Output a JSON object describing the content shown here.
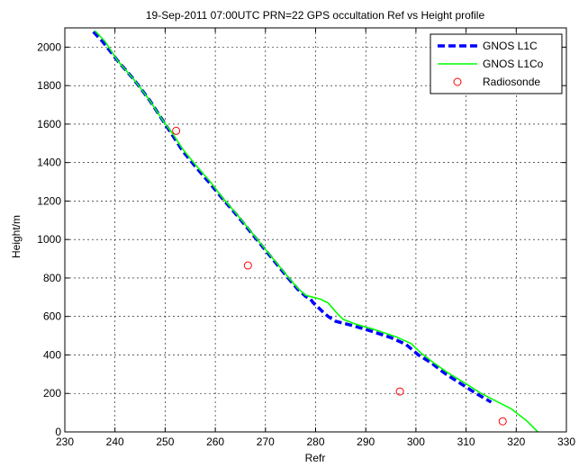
{
  "chart_data": {
    "type": "line",
    "title": "19-Sep-2011 07:00UTC    PRN=22 GPS occultation  Ref vs Height profile",
    "xlabel": "Refr",
    "ylabel": "Height/m",
    "xlim": [
      230,
      330
    ],
    "ylim": [
      0,
      2100
    ],
    "xticks": [
      230,
      240,
      250,
      260,
      270,
      280,
      290,
      300,
      310,
      320,
      330
    ],
    "yticks": [
      0,
      200,
      400,
      600,
      800,
      1000,
      1200,
      1400,
      1600,
      1800,
      2000
    ],
    "grid": true,
    "legend_position": "top-right",
    "series": [
      {
        "name": "GNOS L1C",
        "style": "dashed",
        "color": "#0000ff",
        "points": [
          [
            235.7,
            2080
          ],
          [
            237.5,
            2030
          ],
          [
            240.5,
            1930
          ],
          [
            243.5,
            1840
          ],
          [
            245.0,
            1790
          ],
          [
            247.0,
            1720
          ],
          [
            249.5,
            1620
          ],
          [
            251.5,
            1540
          ],
          [
            253.5,
            1460
          ],
          [
            256.0,
            1380
          ],
          [
            259.0,
            1290
          ],
          [
            261.5,
            1210
          ],
          [
            264.5,
            1120
          ],
          [
            267.0,
            1040
          ],
          [
            269.5,
            960
          ],
          [
            272.0,
            880
          ],
          [
            274.5,
            800
          ],
          [
            276.5,
            740
          ],
          [
            278.0,
            705
          ],
          [
            279.0,
            690
          ],
          [
            279.5,
            672
          ],
          [
            280.2,
            655
          ],
          [
            280.8,
            640
          ],
          [
            281.5,
            622
          ],
          [
            282.5,
            600
          ],
          [
            284.0,
            575
          ],
          [
            287.0,
            555
          ],
          [
            291.0,
            525
          ],
          [
            295.0,
            490
          ],
          [
            298.0,
            455
          ],
          [
            300.5,
            400
          ],
          [
            303.0,
            360
          ],
          [
            306.0,
            300
          ],
          [
            309.0,
            250
          ],
          [
            312.0,
            200
          ],
          [
            315.0,
            155
          ]
        ]
      },
      {
        "name": "GNOS L1Co",
        "style": "solid",
        "color": "#00ff00",
        "points": [
          [
            236.0,
            2085
          ],
          [
            238.0,
            2030
          ],
          [
            240.5,
            1930
          ],
          [
            243.5,
            1840
          ],
          [
            245.0,
            1790
          ],
          [
            247.0,
            1720
          ],
          [
            249.5,
            1620
          ],
          [
            251.5,
            1550
          ],
          [
            253.5,
            1470
          ],
          [
            256.0,
            1390
          ],
          [
            259.0,
            1300
          ],
          [
            261.5,
            1215
          ],
          [
            264.5,
            1125
          ],
          [
            267.0,
            1045
          ],
          [
            269.5,
            965
          ],
          [
            272.0,
            885
          ],
          [
            274.5,
            805
          ],
          [
            276.5,
            745
          ],
          [
            278.0,
            710
          ],
          [
            279.5,
            700
          ],
          [
            281.0,
            690
          ],
          [
            282.5,
            670
          ],
          [
            283.5,
            640
          ],
          [
            284.5,
            610
          ],
          [
            285.5,
            585
          ],
          [
            288.0,
            560
          ],
          [
            292.0,
            530
          ],
          [
            296.0,
            495
          ],
          [
            299.0,
            460
          ],
          [
            301.0,
            410
          ],
          [
            303.5,
            360
          ],
          [
            306.5,
            305
          ],
          [
            310.0,
            250
          ],
          [
            313.0,
            200
          ],
          [
            316.0,
            160
          ],
          [
            319.0,
            120
          ],
          [
            322.0,
            60
          ],
          [
            324.3,
            0
          ]
        ]
      },
      {
        "name": "Radiosonde",
        "style": "markers",
        "color": "#ff0000",
        "points": [
          [
            252.2,
            1565
          ],
          [
            266.5,
            865
          ],
          [
            296.8,
            210
          ],
          [
            317.3,
            55
          ]
        ]
      }
    ]
  }
}
